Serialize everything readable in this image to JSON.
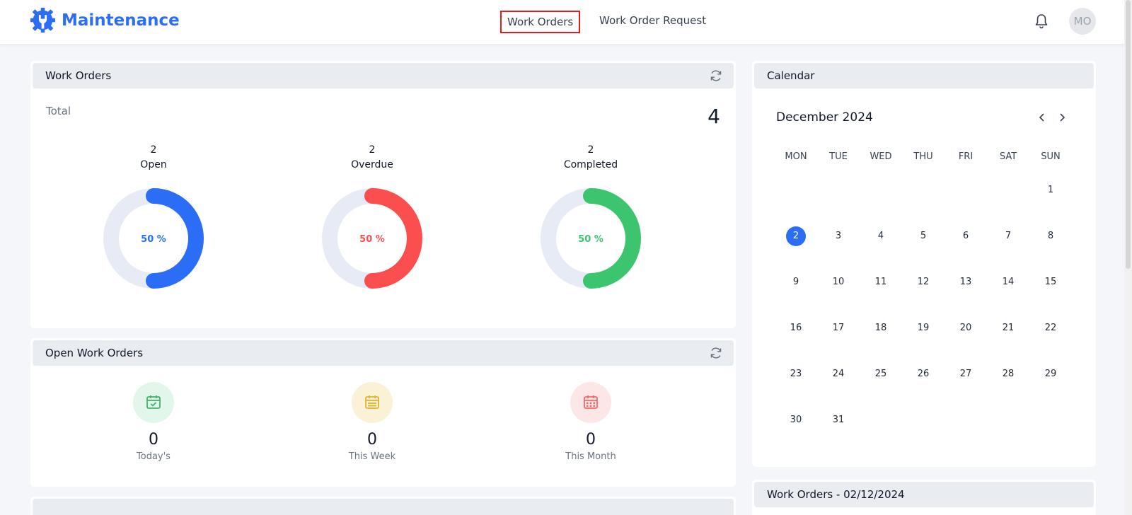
{
  "app": {
    "name": "Maintenance",
    "avatar_initials": "MO"
  },
  "nav": {
    "items": [
      {
        "label": "Work Orders",
        "active": true
      },
      {
        "label": "Work Order Request"
      }
    ]
  },
  "work_orders": {
    "title": "Work Orders",
    "total_label": "Total",
    "total_value": "4",
    "stats": [
      {
        "count": "2",
        "label": "Open",
        "percent_label": "50 %",
        "percent": 50,
        "color": "#2b6ef5"
      },
      {
        "count": "2",
        "label": "Overdue",
        "percent_label": "50 %",
        "percent": 50,
        "color": "#fb4f4f"
      },
      {
        "count": "2",
        "label": "Completed",
        "percent_label": "50 %",
        "percent": 50,
        "color": "#3cc46f"
      }
    ],
    "track_color": "#e6ebf6"
  },
  "open_work_orders": {
    "title": "Open Work Orders",
    "items": [
      {
        "value": "0",
        "label": "Today's",
        "icon": "calendar-check-icon",
        "bg": "#e3f6ea",
        "color": "#3cb56b"
      },
      {
        "value": "0",
        "label": "This Week",
        "icon": "calendar-week-icon",
        "bg": "#faf1d6",
        "color": "#e2b42a"
      },
      {
        "value": "0",
        "label": "This Month",
        "icon": "calendar-month-icon",
        "bg": "#fde6e6",
        "color": "#f26a6a"
      }
    ]
  },
  "calendar": {
    "title": "Calendar",
    "month_label": "December 2024",
    "weekdays": [
      "MON",
      "TUE",
      "WED",
      "THU",
      "FRI",
      "SAT",
      "SUN"
    ],
    "weeks": [
      [
        "",
        "",
        "",
        "",
        "",
        "",
        "1"
      ],
      [
        "2",
        "3",
        "4",
        "5",
        "6",
        "7",
        "8"
      ],
      [
        "9",
        "10",
        "11",
        "12",
        "13",
        "14",
        "15"
      ],
      [
        "16",
        "17",
        "18",
        "19",
        "20",
        "21",
        "22"
      ],
      [
        "23",
        "24",
        "25",
        "26",
        "27",
        "28",
        "29"
      ],
      [
        "30",
        "31",
        "",
        "",
        "",
        "",
        ""
      ]
    ],
    "today": "2"
  },
  "work_orders_date": {
    "title": "Work Orders - 02/12/2024"
  }
}
